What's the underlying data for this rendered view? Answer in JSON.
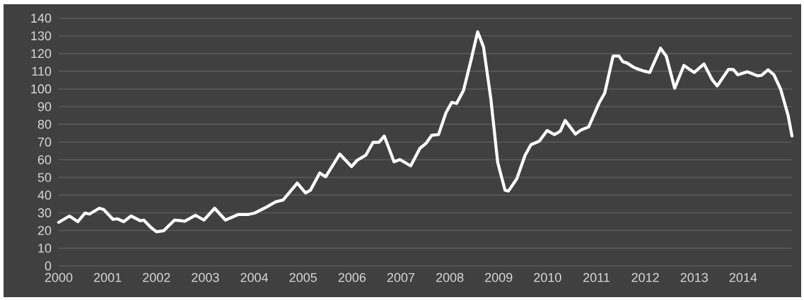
{
  "chart_data": {
    "type": "line",
    "x": [
      2000.0,
      2000.22,
      2000.39,
      2000.54,
      2000.63,
      2000.83,
      2000.92,
      2001.11,
      2001.2,
      2001.33,
      2001.48,
      2001.67,
      2001.74,
      2001.88,
      2002.0,
      2002.15,
      2002.37,
      2002.58,
      2002.8,
      2002.97,
      2003.19,
      2003.41,
      2003.67,
      2003.87,
      2004.01,
      2004.25,
      2004.44,
      2004.59,
      2004.88,
      2005.05,
      2005.15,
      2005.34,
      2005.46,
      2005.75,
      2005.99,
      2006.11,
      2006.28,
      2006.43,
      2006.55,
      2006.66,
      2006.86,
      2006.98,
      2007.2,
      2007.39,
      2007.51,
      2007.63,
      2007.77,
      2007.92,
      2008.04,
      2008.14,
      2008.28,
      2008.43,
      2008.57,
      2008.69,
      2008.84,
      2008.98,
      2009.13,
      2009.2,
      2009.37,
      2009.54,
      2009.66,
      2009.83,
      2009.99,
      2010.14,
      2010.26,
      2010.36,
      2010.57,
      2010.69,
      2010.84,
      2011.05,
      2011.17,
      2011.34,
      2011.46,
      2011.54,
      2011.63,
      2011.75,
      2011.83,
      2011.97,
      2012.09,
      2012.31,
      2012.43,
      2012.6,
      2012.79,
      2013.0,
      2013.2,
      2013.37,
      2013.47,
      2013.7,
      2013.8,
      2013.89,
      2014.09,
      2014.3,
      2014.38,
      2014.51,
      2014.63,
      2014.77,
      2014.92,
      2015.0
    ],
    "series": [
      {
        "color": "#ffffff",
        "values": [
          24.6,
          28.2,
          25.0,
          29.9,
          29.3,
          32.6,
          31.9,
          26.3,
          26.6,
          25.0,
          28.2,
          25.5,
          25.9,
          21.9,
          19.3,
          19.9,
          25.9,
          25.3,
          28.6,
          25.9,
          32.6,
          25.9,
          29.0,
          29.0,
          29.9,
          33.2,
          36.2,
          37.2,
          46.8,
          41.2,
          42.8,
          52.5,
          50.3,
          63.2,
          56.1,
          59.8,
          62.5,
          69.8,
          69.8,
          73.4,
          58.8,
          60.1,
          56.5,
          66.5,
          69.1,
          73.8,
          74.2,
          86.4,
          92.4,
          91.8,
          99.1,
          115.7,
          132.3,
          123.7,
          94.4,
          58.5,
          42.8,
          42.3,
          49.2,
          62.5,
          68.5,
          70.5,
          76.5,
          74.2,
          76.1,
          82.2,
          74.5,
          76.9,
          78.5,
          91.8,
          97.7,
          118.6,
          118.6,
          115.4,
          114.6,
          112.4,
          111.4,
          110.1,
          109.3,
          123.0,
          118.4,
          100.4,
          113.3,
          109.3,
          114.1,
          105.1,
          101.7,
          111.0,
          111.0,
          108.0,
          109.7,
          107.4,
          107.7,
          110.8,
          108.0,
          99.7,
          85.1,
          73.4
        ]
      }
    ],
    "xlim": [
      2000,
      2015
    ],
    "ylim": [
      0,
      140
    ],
    "xticks": [
      2000,
      2001,
      2002,
      2003,
      2004,
      2005,
      2006,
      2007,
      2008,
      2009,
      2010,
      2011,
      2012,
      2013,
      2014
    ],
    "yticks": [
      0,
      10,
      20,
      30,
      40,
      50,
      60,
      70,
      80,
      90,
      100,
      110,
      120,
      130,
      140
    ],
    "grid": "y",
    "line_style": "solid"
  }
}
